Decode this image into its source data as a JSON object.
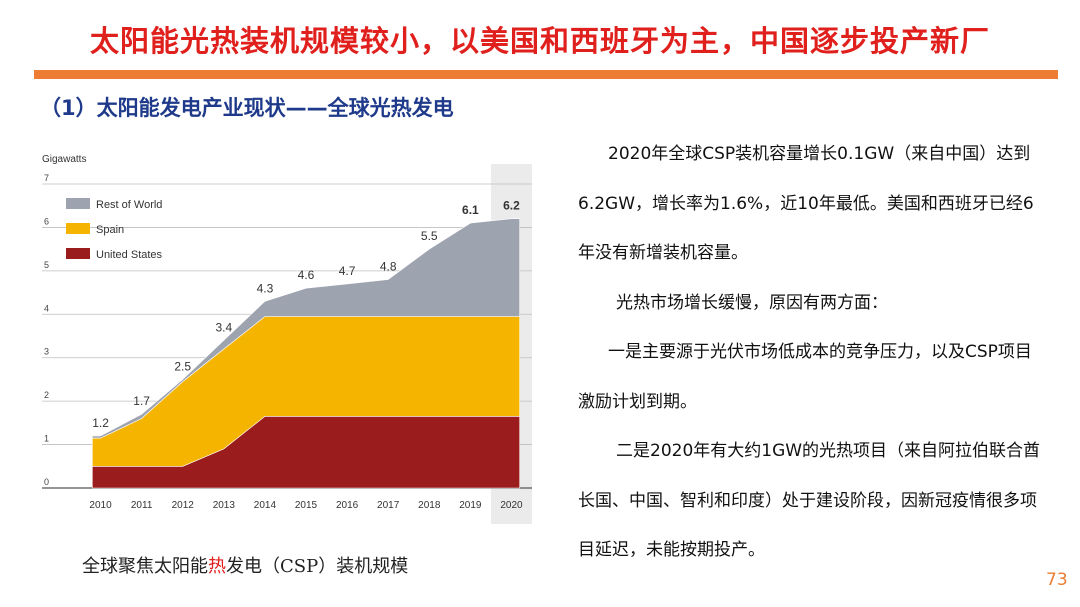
{
  "slide": {
    "title": "太阳能光热装机规模较小，以美国和西班牙为主，中国逐步投产新厂",
    "subtitle": "（1）太阳能发电产业现状——全球光热发电",
    "caption_pre": "全球聚焦太阳能",
    "caption_hl": "热",
    "caption_post": "发电（CSP）装机规模",
    "page_number": "73",
    "paragraphs": [
      "2020年全球CSP装机容量增长0.1GW（来自中国）达到6.2GW，增长率为1.6%，近10年最低。美国和西班牙已经6年没有新增装机容量。",
      "光热市场增长缓慢，原因有两方面：",
      "一是主要源于光伏市场低成本的竞争压力，以及CSP项目激励计划到期。",
      "二是2020年有大约1GW的光热项目（来自阿拉伯联合酋长国、中国、智利和印度）处于建设阶段，因新冠疫情很多项目延迟，未能按期投产。"
    ]
  },
  "colors": {
    "title": "#e0201c",
    "rule": "#ec7d32",
    "subtitle": "#1f3a8a",
    "page_number": "#ec7d32"
  },
  "chart_data": {
    "type": "area",
    "stacked": true,
    "title": "",
    "ylabel": "Gigawatts",
    "xlabel": "",
    "ylim": [
      0,
      7
    ],
    "yticks": [
      0,
      1,
      2,
      3,
      4,
      5,
      6,
      7
    ],
    "grid": true,
    "legend_position": "top-left",
    "categories": [
      "2010",
      "2011",
      "2012",
      "2013",
      "2014",
      "2015",
      "2016",
      "2017",
      "2018",
      "2019",
      "2020"
    ],
    "highlight_category": "2020",
    "series": [
      {
        "name": "United States",
        "color": "#9b1c1c",
        "values": [
          0.5,
          0.5,
          0.5,
          0.9,
          1.65,
          1.65,
          1.65,
          1.65,
          1.65,
          1.65,
          1.65
        ]
      },
      {
        "name": "Spain",
        "color": "#f4b400",
        "values": [
          0.65,
          1.1,
          1.95,
          2.3,
          2.3,
          2.3,
          2.3,
          2.3,
          2.3,
          2.3,
          2.3
        ]
      },
      {
        "name": "Rest of World",
        "color": "#9ea3b0",
        "values": [
          0.05,
          0.1,
          0.05,
          0.2,
          0.35,
          0.65,
          0.75,
          0.85,
          1.55,
          2.15,
          2.25
        ]
      }
    ],
    "legend_order": [
      "Rest of World",
      "Spain",
      "United States"
    ],
    "totals": [
      1.2,
      1.7,
      2.5,
      3.4,
      4.3,
      4.6,
      4.7,
      4.8,
      5.5,
      6.1,
      6.2
    ],
    "total_labels": [
      "1.2",
      "1.7",
      "2.5",
      "3.4",
      "4.3",
      "4.6",
      "4.7",
      "4.8",
      "5.5",
      "6.1",
      "6.2"
    ]
  }
}
